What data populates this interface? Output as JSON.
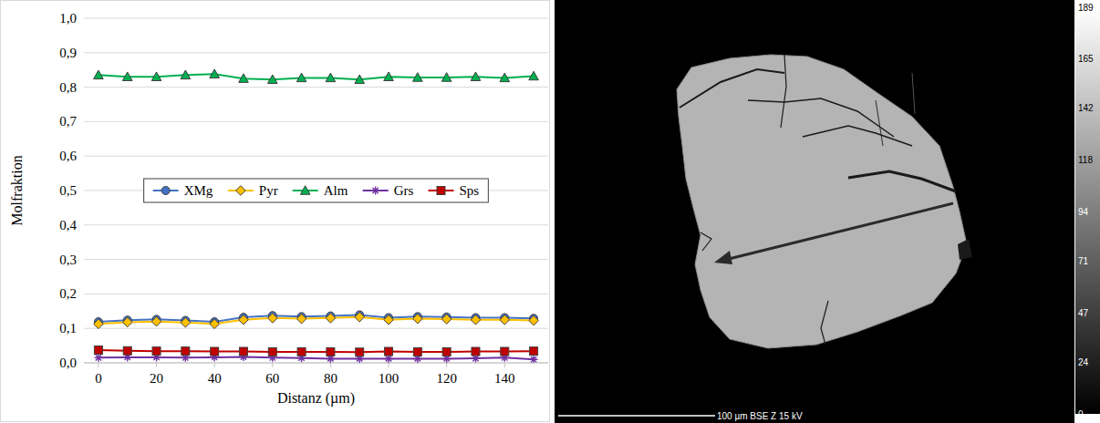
{
  "chart_data": {
    "type": "line",
    "x_label": "Distanz (µm)",
    "y_label": "Molfraktion",
    "x": [
      0,
      10,
      20,
      30,
      40,
      50,
      60,
      70,
      80,
      90,
      100,
      110,
      120,
      130,
      140,
      150
    ],
    "xlim": [
      -5,
      155
    ],
    "xticks": [
      0,
      20,
      40,
      60,
      80,
      100,
      120,
      140
    ],
    "ylim": [
      0,
      1
    ],
    "yticks": [
      {
        "value": 0,
        "label": "0,0"
      },
      {
        "value": 0.1,
        "label": "0,1"
      },
      {
        "value": 0.2,
        "label": "0,2"
      },
      {
        "value": 0.3,
        "label": "0,3"
      },
      {
        "value": 0.4,
        "label": "0,4"
      },
      {
        "value": 0.5,
        "label": "0,5"
      },
      {
        "value": 0.6,
        "label": "0,6"
      },
      {
        "value": 0.7,
        "label": "0,7"
      },
      {
        "value": 0.8,
        "label": "0,8"
      },
      {
        "value": 0.9,
        "label": "0,9"
      },
      {
        "value": 1,
        "label": "1,0"
      }
    ],
    "grid": true,
    "legend": "center",
    "series": [
      {
        "name": "XMg",
        "color": "#4472c4",
        "marker": "circle",
        "line_style": "solid",
        "values": [
          0.119,
          0.124,
          0.126,
          0.123,
          0.119,
          0.132,
          0.137,
          0.134,
          0.136,
          0.139,
          0.131,
          0.134,
          0.133,
          0.131,
          0.131,
          0.129
        ]
      },
      {
        "name": "Pyr",
        "color": "#ffc000",
        "marker": "diamond",
        "line_style": "solid",
        "values": [
          0.113,
          0.118,
          0.12,
          0.117,
          0.113,
          0.125,
          0.13,
          0.128,
          0.13,
          0.133,
          0.125,
          0.128,
          0.127,
          0.125,
          0.125,
          0.123
        ]
      },
      {
        "name": "Alm",
        "color": "#00b050",
        "marker": "triangle",
        "line_style": "solid",
        "values": [
          0.835,
          0.83,
          0.83,
          0.835,
          0.838,
          0.825,
          0.822,
          0.827,
          0.827,
          0.822,
          0.83,
          0.828,
          0.828,
          0.83,
          0.827,
          0.832
        ]
      },
      {
        "name": "Grs",
        "color": "#7030a0",
        "marker": "star",
        "line_style": "solid",
        "values": [
          0.015,
          0.016,
          0.016,
          0.015,
          0.016,
          0.017,
          0.015,
          0.014,
          0.012,
          0.012,
          0.012,
          0.012,
          0.012,
          0.013,
          0.015,
          0.01
        ]
      },
      {
        "name": "Sps",
        "color": "#c00000",
        "marker": "square",
        "line_style": "solid",
        "values": [
          0.037,
          0.035,
          0.034,
          0.034,
          0.033,
          0.033,
          0.032,
          0.032,
          0.032,
          0.031,
          0.033,
          0.032,
          0.032,
          0.033,
          0.033,
          0.034
        ]
      }
    ]
  },
  "image": {
    "scale_label": "100 µm BSE Z 15 kV",
    "colorbar_range": [
      0,
      189
    ],
    "colorbar_ticks": [
      0,
      24,
      47,
      71,
      94,
      118,
      142,
      165,
      189
    ]
  }
}
